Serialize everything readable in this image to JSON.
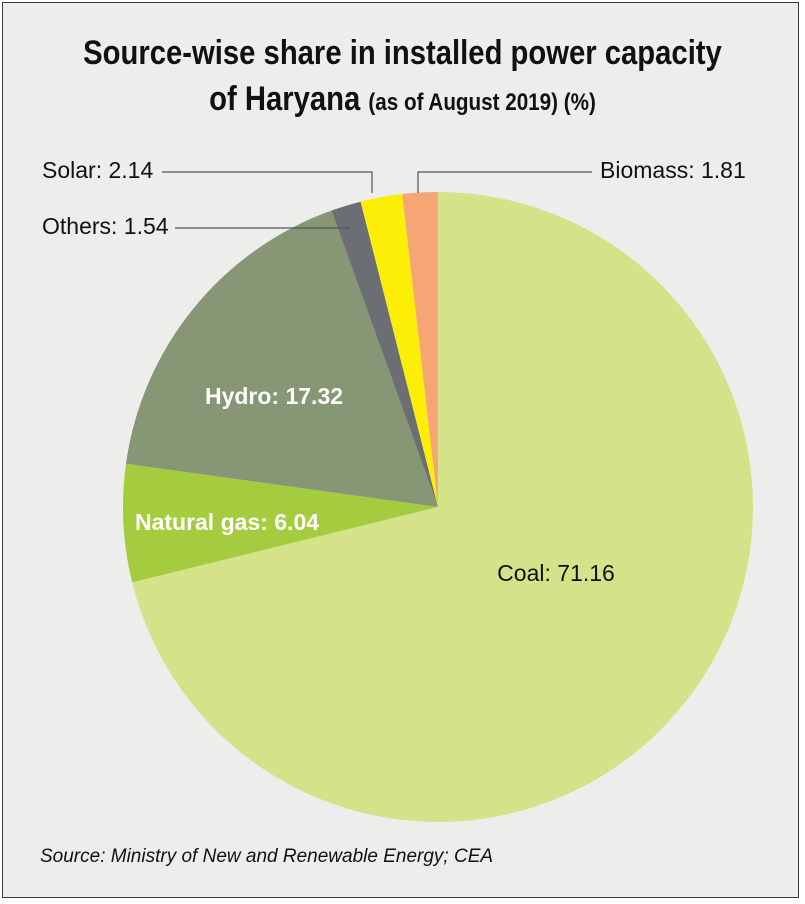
{
  "title_line1": "Source-wise share in installed power capacity",
  "title_line2_main": "of Haryana",
  "title_line2_sub": "(as of August 2019) (%)",
  "source": "Source: Ministry of New and Renewable Energy; CEA",
  "chart_data": {
    "type": "pie",
    "title": "Source-wise share in installed power capacity of Haryana (as of August 2019) (%)",
    "slices": [
      {
        "label": "Coal: 71.16",
        "name": "Coal",
        "value": 71.16,
        "color": "#d4e38a"
      },
      {
        "label": "Natural gas: 6.04",
        "name": "Natural gas",
        "value": 6.04,
        "color": "#a5cc3f"
      },
      {
        "label": "Hydro: 17.32",
        "name": "Hydro",
        "value": 17.32,
        "color": "#879674"
      },
      {
        "label": "Others: 1.54",
        "name": "Others",
        "value": 1.54,
        "color": "#6b6e72"
      },
      {
        "label": "Solar: 2.14",
        "name": "Solar",
        "value": 2.14,
        "color": "#fcee06"
      },
      {
        "label": "Biomass: 1.81",
        "name": "Biomass",
        "value": 1.81,
        "color": "#f6a674"
      }
    ],
    "start_angle": "12 o'clock",
    "direction": "clockwise"
  }
}
